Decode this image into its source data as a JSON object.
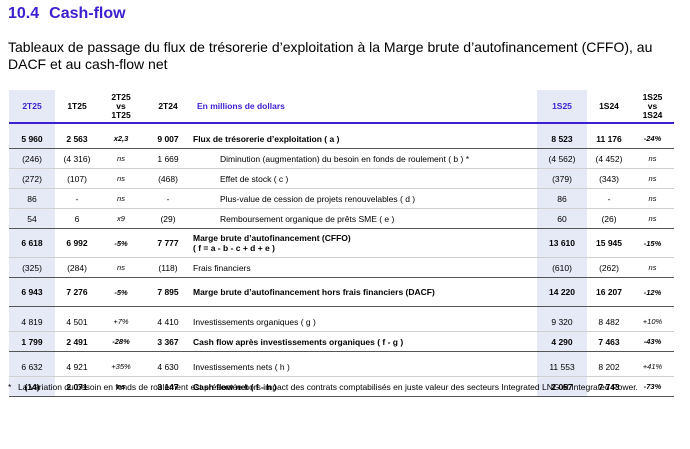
{
  "section": {
    "number": "10.4",
    "title": "Cash-flow"
  },
  "subtitle": "Tableaux de passage du flux de trésorerie d’exploitation à la Marge brute d’autofinancement (CFFO), au DACF et au cash-flow net",
  "header": {
    "c1": "2T25",
    "c2": "1T25",
    "c3": [
      "2T25",
      "vs",
      "1T25"
    ],
    "c4": "2T24",
    "label": "En millions de dollars",
    "c6": "1S25",
    "c7": "1S24",
    "c8": [
      "1S25",
      "vs",
      "1S24"
    ]
  },
  "rows": [
    {
      "c1": "5 960",
      "c2": "2 563",
      "c3": "x2,3",
      "c4": "9 007",
      "label": "Flux de trésorerie d’exploitation ( a )",
      "c6": "8 523",
      "c7": "11 176",
      "c8": "-24%"
    },
    {
      "c1": "(246)",
      "c2": "(4 316)",
      "c3": "ns",
      "c4": "1 669",
      "label": "Diminution (augmentation) du besoin en fonds de roulement ( b ) *",
      "c6": "(4 562)",
      "c7": "(4 452)",
      "c8": "ns"
    },
    {
      "c1": "(272)",
      "c2": "(107)",
      "c3": "ns",
      "c4": "(468)",
      "label": "Effet de stock ( c )",
      "c6": "(379)",
      "c7": "(343)",
      "c8": "ns"
    },
    {
      "c1": "86",
      "c2": "-",
      "c3": "ns",
      "c4": "-",
      "label": "Plus-value de cession de projets renouvelables ( d )",
      "c6": "86",
      "c7": "-",
      "c8": "ns"
    },
    {
      "c1": "54",
      "c2": "6",
      "c3": "x9",
      "c4": "(29)",
      "label": "Remboursement organique de prêts SME ( e )",
      "c6": "60",
      "c7": "(26)",
      "c8": "ns"
    },
    {
      "c1": "6 618",
      "c2": "6 992",
      "c3": "-5%",
      "c4": "7 777",
      "label": "Marge brute d’autofinancement (CFFO)",
      "label2": "( f = a - b - c + d + e )",
      "c6": "13 610",
      "c7": "15 945",
      "c8": "-15%"
    },
    {
      "c1": "(325)",
      "c2": "(284)",
      "c3": "ns",
      "c4": "(118)",
      "label": "Frais financiers",
      "c6": "(610)",
      "c7": "(262)",
      "c8": "ns"
    },
    {
      "c1": "6 943",
      "c2": "7 276",
      "c3": "-5%",
      "c4": "7 895",
      "label": "Marge brute d’autofinancement hors frais financiers (DACF)",
      "c6": "14 220",
      "c7": "16 207",
      "c8": "-12%"
    },
    {
      "c1": "4 819",
      "c2": "4 501",
      "c3": "+7%",
      "c4": "4 410",
      "label": "Investissements organiques ( g )",
      "c6": "9 320",
      "c7": "8 482",
      "c8": "+10%"
    },
    {
      "c1": "1 799",
      "c2": "2 491",
      "c3": "-28%",
      "c4": "3 367",
      "label": "Cash flow après investissements organiques ( f - g )",
      "c6": "4 290",
      "c7": "7 463",
      "c8": "-43%"
    },
    {
      "c1": "6 632",
      "c2": "4 921",
      "c3": "+35%",
      "c4": "4 630",
      "label": "Investissements nets ( h )",
      "c6": "11 553",
      "c7": "8 202",
      "c8": "+41%"
    },
    {
      "c1": "(14)",
      "c2": "2 071",
      "c3": "ns",
      "c4": "3 147",
      "label": "Cash flow net ( f - h )",
      "c6": "2 057",
      "c7": "7 743",
      "c8": "-73%"
    }
  ],
  "footnote": {
    "mark": "*",
    "text": "La variation du besoin en fonds de roulement est présentée hors impact des contrats comptabilisés en juste valeur des secteurs Integrated LNG et Integrated Power."
  },
  "colors": {
    "accent": "#3b1fd1",
    "highlight": "#e6e9f6"
  }
}
